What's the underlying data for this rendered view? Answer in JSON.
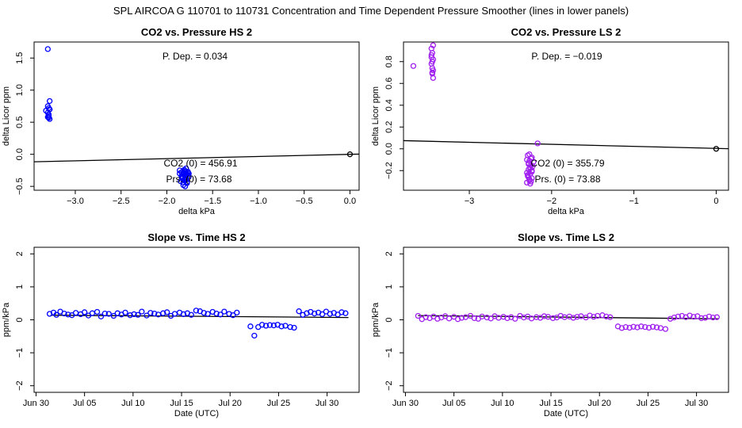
{
  "page_title": "SPL    AIRCOA G    110701 to 110731    Concentration and Time Dependent Pressure Smoother (lines in lower panels)",
  "colors": {
    "hs": "#0000ff",
    "ls": "#a020f0",
    "line": "#000000",
    "axis": "#000000"
  },
  "chart_data": [
    {
      "id": "co2-vs-pressure-hs",
      "type": "scatter",
      "title": "CO2 vs. Pressure HS 2",
      "xlabel": "delta kPa",
      "ylabel": "delta Licor ppm",
      "xlim": [
        -3.45,
        0.1
      ],
      "ylim": [
        -0.56,
        1.75
      ],
      "xticks": [
        -3.0,
        -2.5,
        -2.0,
        -1.5,
        -1.0,
        -0.5,
        0.0
      ],
      "xtick_labels": [
        "−3.0",
        "−2.5",
        "−2.0",
        "−1.5",
        "−1.0",
        "−0.5",
        "0.0"
      ],
      "yticks": [
        -0.5,
        0.0,
        0.5,
        1.0,
        1.5
      ],
      "ytick_labels": [
        "−0.5",
        "0.0",
        "0.5",
        "1.0",
        "1.5"
      ],
      "color": "#0000ff",
      "fit_line": {
        "x": [
          -3.45,
          0.1
        ],
        "y": [
          -0.117,
          0.003
        ]
      },
      "points": {
        "x": [
          -3.3,
          -3.32,
          -3.29,
          -3.28,
          -3.3,
          -3.28,
          -3.29,
          -3.3,
          -3.28,
          -3.3,
          -3.29,
          -3.28,
          -3.29,
          -1.86,
          -1.84,
          -1.82,
          -1.8,
          -1.78,
          -1.76,
          -1.83,
          -1.81,
          -1.79,
          -1.77,
          -1.85,
          -1.82,
          -1.8,
          -1.78,
          -1.84,
          -1.81,
          -1.79,
          -1.76,
          -1.83,
          -1.8,
          -1.78,
          -1.82,
          -1.8,
          -1.86,
          -1.77,
          -1.81,
          -1.79,
          -1.83,
          -1.8,
          -1.78,
          -1.82,
          -1.8,
          -1.79,
          0.0
        ],
        "y": [
          1.64,
          0.68,
          0.72,
          0.83,
          0.75,
          0.7,
          0.62,
          0.58,
          0.55,
          0.65,
          0.6,
          0.7,
          0.57,
          -0.25,
          -0.28,
          -0.3,
          -0.27,
          -0.32,
          -0.35,
          -0.38,
          -0.4,
          -0.33,
          -0.29,
          -0.42,
          -0.44,
          -0.36,
          -0.31,
          -0.34,
          -0.26,
          -0.22,
          -0.3,
          -0.37,
          -0.41,
          -0.45,
          -0.48,
          -0.5,
          -0.3,
          -0.27,
          -0.24,
          -0.32,
          -0.35,
          -0.39,
          -0.43,
          -0.29,
          -0.33,
          -0.36,
          0.0
        ]
      },
      "annotations": {
        "pdep": "P. Dep. =  0.034",
        "co2": "CO2 (0) =  456.91",
        "prs": "Prs. (0) =  73.68"
      }
    },
    {
      "id": "co2-vs-pressure-ls",
      "type": "scatter",
      "title": "CO2 vs. Pressure LS 2",
      "xlabel": "delta kPa",
      "ylabel": "delta Licor ppm",
      "xlim": [
        -3.8,
        0.15
      ],
      "ylim": [
        -0.38,
        0.98
      ],
      "xticks": [
        -3,
        -2,
        -1,
        0
      ],
      "xtick_labels": [
        "−3",
        "−2",
        "−1",
        "0"
      ],
      "yticks": [
        -0.2,
        0.0,
        0.2,
        0.4,
        0.6,
        0.8
      ],
      "ytick_labels": [
        "−0.2",
        "0.0",
        "0.2",
        "0.4",
        "0.6",
        "0.8"
      ],
      "color": "#a020f0",
      "fit_line": {
        "x": [
          -3.8,
          0.15
        ],
        "y": [
          0.075,
          0.001
        ]
      },
      "points": {
        "x": [
          -3.68,
          -3.46,
          -3.45,
          -3.44,
          -3.46,
          -3.45,
          -3.44,
          -3.46,
          -3.45,
          -3.44,
          -3.45,
          -3.46,
          -3.44,
          -3.45,
          -2.3,
          -2.28,
          -2.26,
          -2.24,
          -2.22,
          -2.29,
          -2.27,
          -2.25,
          -2.23,
          -2.3,
          -2.28,
          -2.26,
          -2.24,
          -2.29,
          -2.27,
          -2.25,
          -2.28,
          -2.26,
          -2.24,
          -2.3,
          -2.27,
          -2.25,
          -2.17,
          -2.28,
          -2.26,
          -2.24,
          -2.29,
          -2.27,
          0.0
        ],
        "y": [
          0.76,
          0.92,
          0.88,
          0.95,
          0.84,
          0.8,
          0.72,
          0.78,
          0.69,
          0.65,
          0.74,
          0.86,
          0.82,
          0.7,
          -0.1,
          -0.14,
          -0.18,
          -0.2,
          -0.12,
          -0.24,
          -0.28,
          -0.3,
          -0.16,
          -0.22,
          -0.26,
          -0.32,
          -0.08,
          -0.06,
          -0.11,
          -0.15,
          -0.19,
          -0.23,
          -0.27,
          -0.31,
          -0.05,
          -0.09,
          0.05,
          -0.13,
          -0.17,
          -0.21,
          -0.25,
          -0.29,
          0.0
        ]
      },
      "annotations": {
        "pdep": "P. Dep. =  −0.019",
        "co2": "CO2 (0) =  355.79",
        "prs": "Prs. (0) =  73.88"
      }
    },
    {
      "id": "slope-vs-time-hs",
      "type": "scatter",
      "title": "Slope vs. Time HS 2",
      "xlabel": "Date (UTC)",
      "ylabel": "ppm/kPa",
      "xlim": [
        -0.2,
        33.3
      ],
      "ylim": [
        -2.2,
        2.2
      ],
      "xticks": [
        0,
        5,
        10,
        15,
        20,
        25,
        30
      ],
      "xtick_labels": [
        "Jun 30",
        "Jul 05",
        "Jul 10",
        "Jul 15",
        "Jul 20",
        "Jul 25",
        "Jul 30"
      ],
      "yticks": [
        -2,
        -1,
        0,
        1,
        2
      ],
      "ytick_labels": [
        "−2",
        "−1",
        "0",
        "1",
        "2"
      ],
      "color": "#0000ff",
      "fit_line": {
        "x": [
          1.5,
          32.2
        ],
        "y": [
          0.14,
          0.07
        ]
      },
      "points": {
        "x": [
          1.4,
          1.8,
          2.1,
          2.5,
          2.9,
          3.3,
          3.7,
          4.1,
          4.6,
          5.0,
          5.4,
          5.8,
          6.3,
          6.7,
          7.1,
          7.5,
          8.0,
          8.4,
          8.8,
          9.2,
          9.7,
          10.1,
          10.5,
          10.9,
          11.4,
          11.8,
          12.2,
          12.6,
          13.1,
          13.5,
          13.9,
          14.3,
          14.8,
          15.2,
          15.6,
          16.0,
          16.5,
          16.9,
          17.3,
          17.7,
          18.2,
          18.6,
          19.0,
          19.4,
          19.9,
          20.3,
          20.7,
          22.1,
          22.5,
          22.9,
          23.3,
          23.7,
          24.1,
          24.5,
          24.9,
          25.3,
          25.7,
          26.2,
          26.6,
          27.1,
          27.5,
          27.9,
          28.3,
          28.7,
          29.1,
          29.5,
          29.9,
          30.3,
          30.7,
          31.1,
          31.5,
          31.9
        ],
        "y": [
          0.18,
          0.22,
          0.15,
          0.25,
          0.19,
          0.16,
          0.14,
          0.21,
          0.17,
          0.23,
          0.13,
          0.2,
          0.24,
          0.1,
          0.19,
          0.18,
          0.12,
          0.2,
          0.16,
          0.22,
          0.14,
          0.17,
          0.15,
          0.25,
          0.13,
          0.21,
          0.19,
          0.16,
          0.2,
          0.23,
          0.12,
          0.18,
          0.22,
          0.17,
          0.2,
          0.15,
          0.28,
          0.26,
          0.21,
          0.18,
          0.24,
          0.19,
          0.16,
          0.25,
          0.18,
          0.14,
          0.22,
          -0.2,
          -0.48,
          -0.22,
          -0.15,
          -0.18,
          -0.16,
          -0.17,
          -0.15,
          -0.2,
          -0.18,
          -0.22,
          -0.24,
          0.26,
          0.15,
          0.2,
          0.24,
          0.19,
          0.22,
          0.17,
          0.25,
          0.18,
          0.21,
          0.16,
          0.23,
          0.2
        ],
        "xref": "days since Jun 30"
      }
    },
    {
      "id": "slope-vs-time-ls",
      "type": "scatter",
      "title": "Slope vs. Time LS 2",
      "xlabel": "Date (UTC)",
      "ylabel": "ppm/kPa",
      "xlim": [
        -0.2,
        33.3
      ],
      "ylim": [
        -2.2,
        2.2
      ],
      "xticks": [
        0,
        5,
        10,
        15,
        20,
        25,
        30
      ],
      "xtick_labels": [
        "Jun 30",
        "Jul 05",
        "Jul 10",
        "Jul 15",
        "Jul 20",
        "Jul 25",
        "Jul 30"
      ],
      "yticks": [
        -2,
        -1,
        0,
        1,
        2
      ],
      "ytick_labels": [
        "−2",
        "−1",
        "0",
        "1",
        "2"
      ],
      "color": "#a020f0",
      "fit_line": {
        "x": [
          1.3,
          32.3
        ],
        "y": [
          0.13,
          0.03
        ]
      },
      "points": {
        "x": [
          1.3,
          1.7,
          2.1,
          2.5,
          2.9,
          3.3,
          3.7,
          4.1,
          4.5,
          5.0,
          5.4,
          5.8,
          6.2,
          6.7,
          7.1,
          7.5,
          7.9,
          8.4,
          8.8,
          9.2,
          9.6,
          10.1,
          10.5,
          10.9,
          11.3,
          11.8,
          12.2,
          12.6,
          13.0,
          13.5,
          13.9,
          14.3,
          14.7,
          15.2,
          15.6,
          16.0,
          16.4,
          16.9,
          17.3,
          17.7,
          18.1,
          18.6,
          19.0,
          19.4,
          19.8,
          20.3,
          20.7,
          21.1,
          21.9,
          22.3,
          22.7,
          23.1,
          23.5,
          23.9,
          24.3,
          24.7,
          25.1,
          25.5,
          25.9,
          26.3,
          26.8,
          27.3,
          27.7,
          28.1,
          28.5,
          28.9,
          29.3,
          29.7,
          30.1,
          30.5,
          30.9,
          31.3,
          31.7,
          32.1
        ],
        "y": [
          0.12,
          0.02,
          0.08,
          0.05,
          0.1,
          0.03,
          0.07,
          0.11,
          0.04,
          0.09,
          0.02,
          0.06,
          0.08,
          0.12,
          0.05,
          0.03,
          0.1,
          0.07,
          0.04,
          0.11,
          0.06,
          0.09,
          0.05,
          0.08,
          0.03,
          0.12,
          0.07,
          0.1,
          0.04,
          0.08,
          0.06,
          0.11,
          0.09,
          0.05,
          0.07,
          0.12,
          0.08,
          0.1,
          0.06,
          0.09,
          0.11,
          0.07,
          0.13,
          0.09,
          0.12,
          0.14,
          0.1,
          0.08,
          -0.2,
          -0.25,
          -0.22,
          -0.24,
          -0.21,
          -0.23,
          -0.2,
          -0.22,
          -0.24,
          -0.21,
          -0.23,
          -0.25,
          -0.28,
          0.03,
          0.07,
          0.1,
          0.12,
          0.08,
          0.13,
          0.09,
          0.11,
          0.05,
          0.06,
          0.1,
          0.07,
          0.08
        ],
        "xref": "days since Jun 30"
      }
    }
  ]
}
